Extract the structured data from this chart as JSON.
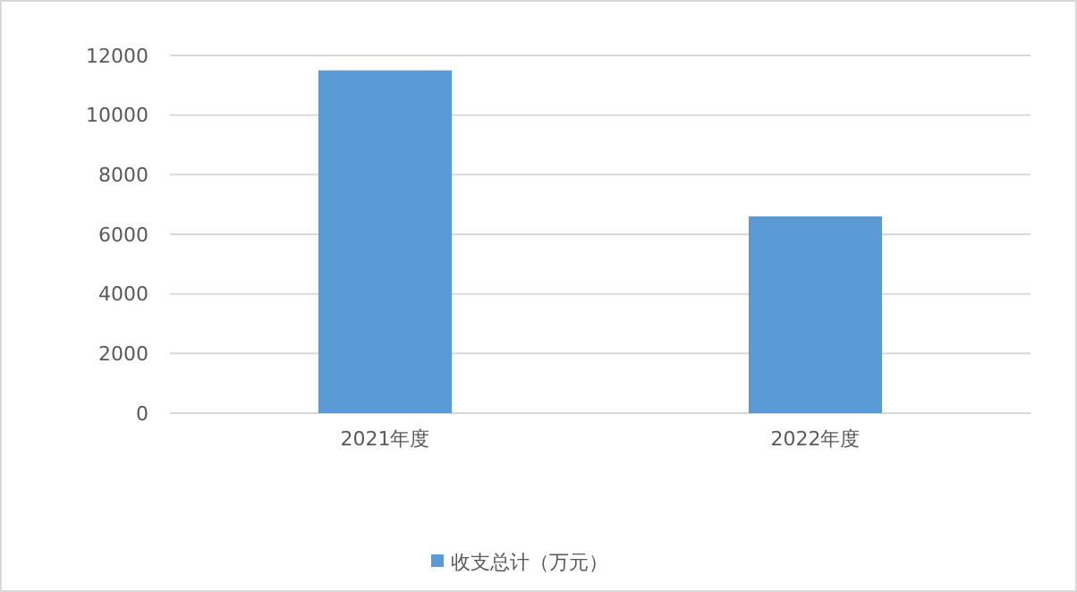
{
  "chart_data": {
    "type": "bar",
    "categories": [
      "2021年度",
      "2022年度"
    ],
    "series": [
      {
        "name": "收支总计（万元）",
        "color": "#5b9bd5",
        "values": [
          11500,
          6600
        ]
      }
    ],
    "ylim": [
      0,
      12000
    ],
    "yticks": [
      0,
      2000,
      4000,
      6000,
      8000,
      10000,
      12000
    ],
    "grid": "y",
    "legend": "bottom"
  }
}
